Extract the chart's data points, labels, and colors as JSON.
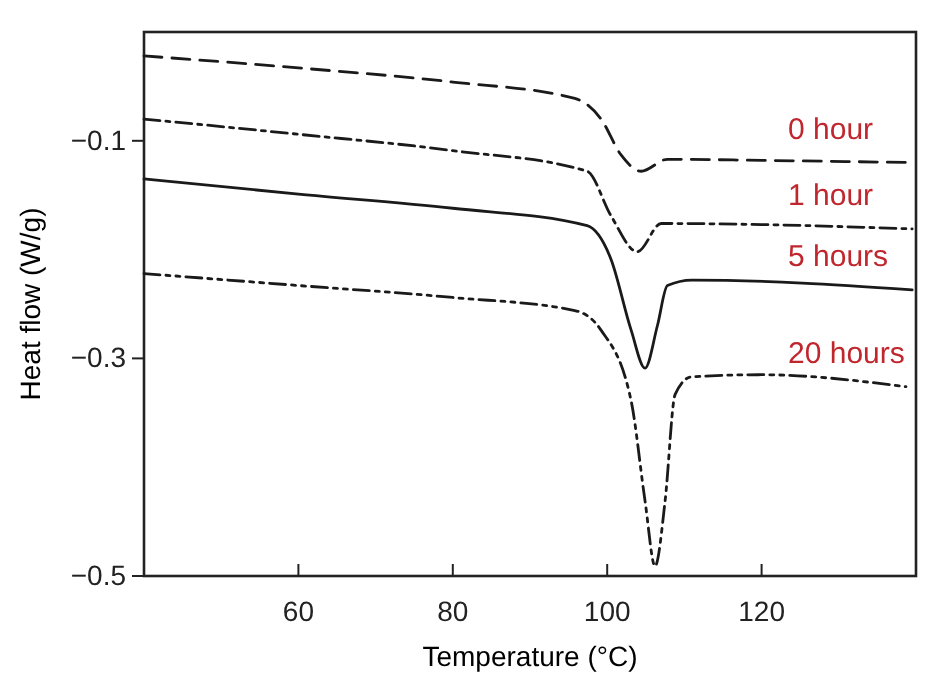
{
  "chart_data": {
    "type": "line",
    "xlabel": "Temperature (°C)",
    "ylabel": "Heat flow (W/g)",
    "xlim": [
      40,
      140
    ],
    "ylim": [
      -0.5,
      0
    ],
    "xticks": [
      60,
      80,
      100,
      120
    ],
    "yticks": [
      -0.1,
      -0.3,
      -0.5
    ],
    "series": [
      {
        "name": "0 hour",
        "color": "#1a1a1a",
        "line_style": "dashed",
        "x": [
          40,
          60,
          80,
          95.8,
          99.2,
          101.8,
          104.4,
          107.8,
          120,
          139.5
        ],
        "values": [
          -0.022,
          -0.033,
          -0.046,
          -0.061,
          -0.08,
          -0.113,
          -0.128,
          -0.117,
          -0.118,
          -0.12
        ]
      },
      {
        "name": "1 hour",
        "color": "#1a1a1a",
        "line_style": "dashdot",
        "x": [
          40,
          60,
          80,
          97.4,
          100.5,
          103.9,
          107,
          120,
          139.5
        ],
        "values": [
          -0.08,
          -0.094,
          -0.109,
          -0.128,
          -0.169,
          -0.202,
          -0.176,
          -0.177,
          -0.181
        ]
      },
      {
        "name": "5 hours",
        "color": "#1a1a1a",
        "line_style": "solid",
        "x": [
          40,
          60,
          80,
          97.4,
          100.5,
          103.1,
          104.9,
          106.5,
          107.8,
          111,
          139.5
        ],
        "values": [
          -0.135,
          -0.149,
          -0.162,
          -0.178,
          -0.209,
          -0.274,
          -0.309,
          -0.27,
          -0.233,
          -0.228,
          -0.237
        ]
      },
      {
        "name": "20 hours",
        "color": "#1a1a1a",
        "line_style": "dashdotdot",
        "x": [
          40,
          60,
          80,
          95.8,
          99.2,
          103.1,
          104.9,
          106.2,
          107.5,
          108.8,
          110.9,
          120,
          138.7
        ],
        "values": [
          -0.222,
          -0.233,
          -0.244,
          -0.256,
          -0.274,
          -0.339,
          -0.431,
          -0.491,
          -0.431,
          -0.333,
          -0.317,
          -0.315,
          -0.326
        ]
      }
    ]
  }
}
